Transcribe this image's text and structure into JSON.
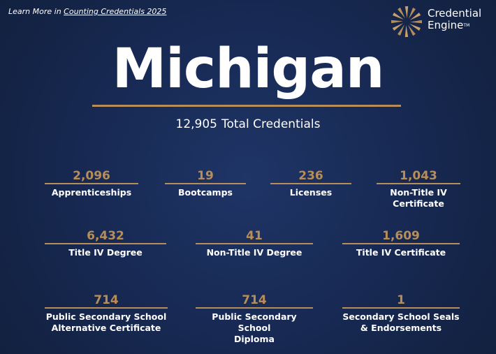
{
  "header": {
    "link_prefix": "Learn More in ",
    "link_text": "Counting Credentials 2025"
  },
  "logo": {
    "line1": "Credential",
    "line2": "Engine",
    "tm": "TM"
  },
  "state": "Michigan",
  "total": {
    "value": "12,905",
    "label": "Total Credentials"
  },
  "stats": [
    {
      "value": "2,096",
      "label": "Apprenticeships"
    },
    {
      "value": "19",
      "label": "Bootcamps"
    },
    {
      "value": "236",
      "label": "Licenses"
    },
    {
      "value": "1,043",
      "label": "Non-Title IV\nCertificate"
    },
    {
      "value": "6,432",
      "label": "Title IV Degree"
    },
    {
      "value": "41",
      "label": "Non-Title IV Degree"
    },
    {
      "value": "1,609",
      "label": "Title IV Certificate"
    },
    {
      "value": "714",
      "label": "Public Secondary School\nAlternative Certificate"
    },
    {
      "value": "714",
      "label": "Public Secondary School\nDiploma"
    },
    {
      "value": "1",
      "label": "Secondary School Seals\n& Endorsements"
    }
  ],
  "colors": {
    "accent": "#b78d59",
    "background": "#1a2d5a",
    "text": "#ffffff"
  }
}
